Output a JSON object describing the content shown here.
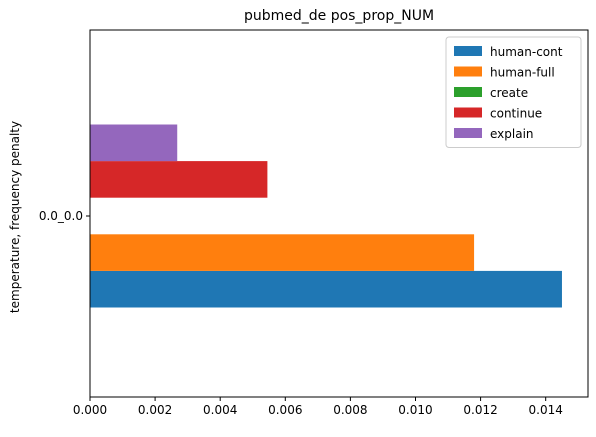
{
  "chart_data": {
    "type": "bar",
    "orientation": "horizontal",
    "title": "pubmed_de pos_prop_NUM",
    "xlabel": "",
    "ylabel": "temperature, frequency penalty",
    "categories": [
      "0.0_0.0"
    ],
    "xlim": [
      0,
      0.0153
    ],
    "xticks": [
      "0.000",
      "0.002",
      "0.004",
      "0.006",
      "0.008",
      "0.010",
      "0.012",
      "0.014"
    ],
    "grid": false,
    "legend_position": "top-right",
    "series": [
      {
        "name": "human-cont",
        "color": "#1f77b4",
        "values": [
          0.0145
        ]
      },
      {
        "name": "human-full",
        "color": "#ff7f0e",
        "values": [
          0.0118
        ]
      },
      {
        "name": "create",
        "color": "#2ca02c",
        "values": [
          0.0
        ]
      },
      {
        "name": "continue",
        "color": "#d62728",
        "values": [
          0.00545
        ]
      },
      {
        "name": "explain",
        "color": "#9467bd",
        "values": [
          0.00268
        ]
      }
    ]
  }
}
